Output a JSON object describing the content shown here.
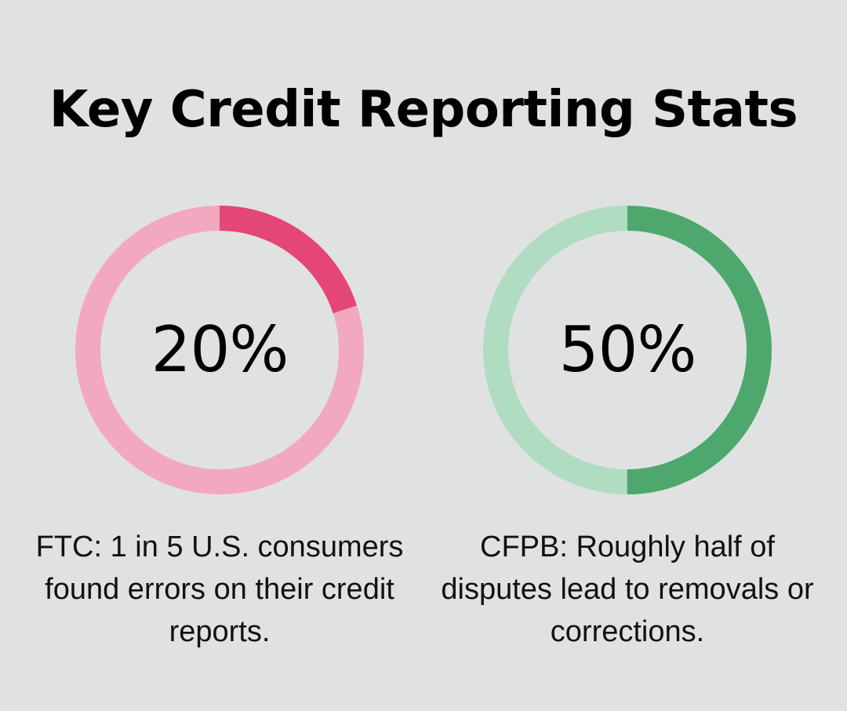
{
  "title": "Key Credit Reporting Stats",
  "chart_data": [
    {
      "type": "pie",
      "label": "20%",
      "value": 20,
      "total": 100,
      "caption": "FTC: 1 in 5 U.S. consumers found errors on their credit reports.",
      "colors": {
        "filled": "#e44675",
        "track": "#f2a9bf"
      }
    },
    {
      "type": "pie",
      "label": "50%",
      "value": 50,
      "total": 100,
      "caption": "CFPB: Roughly half of disputes lead to removals or corrections.",
      "colors": {
        "filled": "#4ea86e",
        "track": "#b0dcc1"
      }
    }
  ]
}
